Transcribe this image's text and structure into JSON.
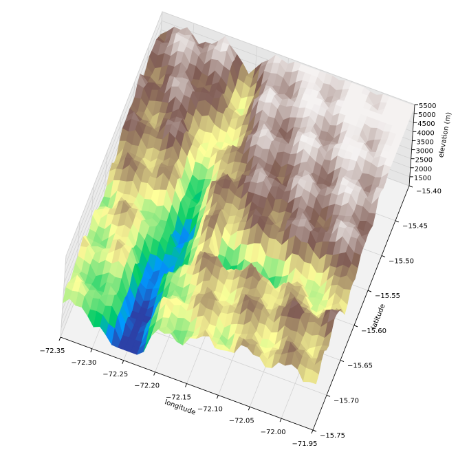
{
  "chart_data": {
    "type": "surface3d",
    "xlabel": "longitude",
    "ylabel": "latitude",
    "zlabel": "elevation (m)",
    "colormap": "terrain",
    "xlim": [
      -72.35,
      -71.95
    ],
    "xticks": [
      {
        "value": -72.35,
        "label": "−72.35"
      },
      {
        "value": -72.3,
        "label": "−72.30"
      },
      {
        "value": -72.25,
        "label": "−72.25"
      },
      {
        "value": -72.2,
        "label": "−72.20"
      },
      {
        "value": -72.15,
        "label": "−72.15"
      },
      {
        "value": -72.1,
        "label": "−72.10"
      },
      {
        "value": -72.05,
        "label": "−72.05"
      },
      {
        "value": -72.0,
        "label": "−72.00"
      },
      {
        "value": -71.95,
        "label": "−71.95"
      }
    ],
    "ylim": [
      -15.75,
      -15.4
    ],
    "yticks": [
      {
        "value": -15.4,
        "label": "−15.40"
      },
      {
        "value": -15.45,
        "label": "−15.45"
      },
      {
        "value": -15.5,
        "label": "−15.50"
      },
      {
        "value": -15.55,
        "label": "−15.55"
      },
      {
        "value": -15.6,
        "label": "−15.60"
      },
      {
        "value": -15.65,
        "label": "−15.65"
      },
      {
        "value": -15.7,
        "label": "−15.70"
      },
      {
        "value": -15.75,
        "label": "−15.75"
      }
    ],
    "zlim": [
      1000,
      5500
    ],
    "zticks": [
      1500,
      2000,
      2500,
      3000,
      3500,
      4000,
      4500,
      5000,
      5500
    ]
  }
}
